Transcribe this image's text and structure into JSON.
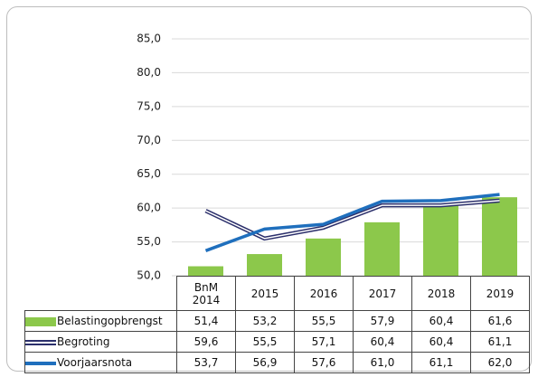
{
  "chart_data": {
    "type": "bar-line",
    "categories": [
      "BnM 2014",
      "2015",
      "2016",
      "2017",
      "2018",
      "2019"
    ],
    "ylim": [
      50,
      85
    ],
    "yticks": [
      {
        "value": 50,
        "label": "50,0"
      },
      {
        "value": 55,
        "label": "55,0"
      },
      {
        "value": 60,
        "label": "60,0"
      },
      {
        "value": 65,
        "label": "65,0"
      },
      {
        "value": 70,
        "label": "70,0"
      },
      {
        "value": 75,
        "label": "75,0"
      },
      {
        "value": 80,
        "label": "80,0"
      },
      {
        "value": 85,
        "label": "85,0"
      }
    ],
    "grid": true,
    "series": [
      {
        "name": "Belastingopbrengst",
        "type": "bar",
        "color": "#8cc84b",
        "values": [
          51.4,
          53.2,
          55.5,
          57.9,
          60.4,
          61.6
        ],
        "value_labels": [
          "51,4",
          "53,2",
          "55,5",
          "57,9",
          "60,4",
          "61,6"
        ]
      },
      {
        "name": "Begroting",
        "type": "double-line",
        "color": "#2b2f6b",
        "values": [
          59.6,
          55.5,
          57.1,
          60.4,
          60.4,
          61.1
        ],
        "value_labels": [
          "59,6",
          "55,5",
          "57,1",
          "60,4",
          "60,4",
          "61,1"
        ]
      },
      {
        "name": "Voorjaarsnota",
        "type": "line",
        "color": "#1f6fbd",
        "values": [
          53.7,
          56.9,
          57.6,
          61.0,
          61.1,
          62.0
        ],
        "value_labels": [
          "53,7",
          "56,9",
          "57,6",
          "61,0",
          "61,1",
          "62,0"
        ]
      }
    ]
  }
}
